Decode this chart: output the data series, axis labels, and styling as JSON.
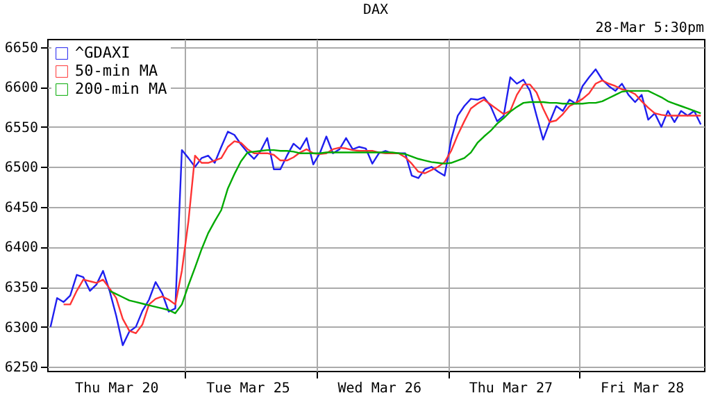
{
  "chart_data": {
    "type": "line",
    "title": "DAX",
    "annotations": [
      "28-Mar 5:30pm"
    ],
    "categories": [
      null,
      null,
      null,
      null,
      null,
      null,
      null,
      null,
      null,
      null,
      "Thu Mar 20",
      null,
      null,
      null,
      null,
      null,
      null,
      null,
      null,
      null,
      null,
      null,
      null,
      null,
      null,
      null,
      null,
      null,
      null,
      null,
      "Tue Mar 25",
      null,
      null,
      null,
      null,
      null,
      null,
      null,
      null,
      null,
      null,
      null,
      null,
      null,
      null,
      null,
      null,
      null,
      null,
      null,
      "Wed Mar 26",
      null,
      null,
      null,
      null,
      null,
      null,
      null,
      null,
      null,
      null,
      null,
      null,
      null,
      null,
      null,
      null,
      null,
      null,
      null,
      "Thu Mar 27",
      null,
      null,
      null,
      null,
      null,
      null,
      null,
      null,
      null,
      null,
      null,
      null,
      null,
      null,
      null,
      null,
      null,
      null,
      null,
      "Fri Mar 28",
      null,
      null,
      null,
      null,
      null,
      null,
      null,
      null,
      null
    ],
    "ylim": [
      6245,
      6660
    ],
    "yticks": [
      6250,
      6300,
      6350,
      6400,
      6450,
      6500,
      6550,
      6600,
      6650
    ],
    "grid": true,
    "legend": "top left",
    "marker": "none",
    "line_style": "solid",
    "series": [
      {
        "name": "^GDAXI",
        "color": "#1f1fef",
        "values": [
          6300,
          6336,
          6331,
          6339,
          6365,
          6362,
          6345,
          6353,
          6370,
          6345,
          6314,
          6277,
          6294,
          6300,
          6320,
          6334,
          6356,
          6342,
          6319,
          6323,
          6521,
          6511,
          6500,
          6511,
          6514,
          6505,
          6525,
          6544,
          6540,
          6528,
          6518,
          6510,
          6520,
          6536,
          6497,
          6497,
          6514,
          6529,
          6522,
          6536,
          6503,
          6517,
          6538,
          6517,
          6522,
          6536,
          6522,
          6525,
          6523,
          6504,
          6517,
          6520,
          6517,
          6517,
          6517,
          6489,
          6486,
          6497,
          6500,
          6494,
          6489,
          6534,
          6564,
          6576,
          6585,
          6584,
          6587,
          6576,
          6557,
          6564,
          6612,
          6604,
          6609,
          6595,
          6564,
          6534,
          6556,
          6576,
          6570,
          6584,
          6579,
          6601,
          6612,
          6622,
          6609,
          6601,
          6595,
          6604,
          6590,
          6581,
          6590,
          6559,
          6567,
          6550,
          6570,
          6556,
          6570,
          6564,
          6570,
          6553
        ]
      },
      {
        "name": "50-min MA",
        "color": "#ff3333",
        "values": [
          null,
          null,
          6328,
          6328,
          6345,
          6359,
          6357,
          6355,
          6359,
          6348,
          6336,
          6310,
          6295,
          6292,
          6303,
          6328,
          6335,
          6338,
          6334,
          6328,
          6370,
          6432,
          6514,
          6505,
          6505,
          6508,
          6511,
          6525,
          6532,
          6530,
          6522,
          6517,
          6517,
          6517,
          6515,
          6508,
          6508,
          6512,
          6518,
          6522,
          6517,
          6516,
          6517,
          6522,
          6524,
          6523,
          6521,
          6520,
          6520,
          6520,
          6518,
          6517,
          6517,
          6517,
          6512,
          6504,
          6494,
          6492,
          6496,
          6500,
          6506,
          6520,
          6540,
          6557,
          6573,
          6579,
          6584,
          6578,
          6572,
          6566,
          6570,
          6590,
          6603,
          6603,
          6593,
          6573,
          6556,
          6558,
          6566,
          6576,
          6580,
          6585,
          6592,
          6604,
          6608,
          6604,
          6601,
          6597,
          6595,
          6591,
          6582,
          6574,
          6567,
          6565,
          6564,
          6564,
          6564,
          6564,
          6564,
          6564
        ]
      },
      {
        "name": "200-min MA",
        "color": "#00aa00",
        "values": [
          null,
          null,
          null,
          null,
          null,
          null,
          null,
          null,
          null,
          6345,
          6341,
          6337,
          6333,
          6331,
          6329,
          6327,
          6325,
          6323,
          6321,
          6317,
          6328,
          6352,
          6374,
          6397,
          6417,
          6432,
          6446,
          6473,
          6491,
          6507,
          6518,
          6519,
          6520,
          6521,
          6521,
          6520,
          6520,
          6519,
          6517,
          6517,
          6517,
          6517,
          6518,
          6518,
          6518,
          6518,
          6518,
          6518,
          6518,
          6518,
          6518,
          6518,
          6518,
          6517,
          6516,
          6513,
          6510,
          6508,
          6506,
          6505,
          6504,
          6505,
          6508,
          6511,
          6518,
          6530,
          6538,
          6545,
          6554,
          6561,
          6569,
          6575,
          6580,
          6581,
          6581,
          6581,
          6580,
          6580,
          6579,
          6579,
          6579,
          6579,
          6580,
          6580,
          6582,
          6586,
          6590,
          6594,
          6595,
          6595,
          6595,
          6595,
          6591,
          6587,
          6582,
          6579,
          6576,
          6573,
          6570,
          6567
        ]
      }
    ]
  }
}
